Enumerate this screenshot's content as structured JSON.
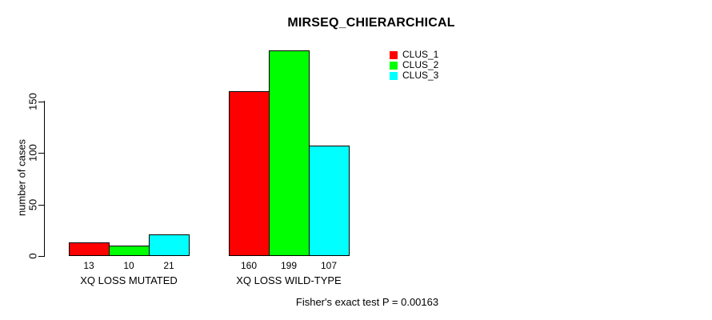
{
  "chart_data": {
    "type": "bar",
    "title": "MIRSEQ_CHIERARCHICAL",
    "ylabel": "number of cases",
    "xlabel": "",
    "categories": [
      "XQ LOSS MUTATED",
      "XQ LOSS WILD-TYPE"
    ],
    "series": [
      {
        "name": "CLUS_1",
        "color": "#ff0000",
        "values": [
          13,
          160
        ]
      },
      {
        "name": "CLUS_2",
        "color": "#00ff00",
        "values": [
          10,
          199
        ]
      },
      {
        "name": "CLUS_3",
        "color": "#00ffff",
        "values": [
          21,
          107
        ]
      }
    ],
    "yticks": [
      0,
      50,
      100,
      150
    ],
    "ylim": [
      0,
      199
    ],
    "bar_value_labels_shown": true,
    "legend_position": "top-right",
    "grid": false
  },
  "footnote": "Fisher's exact test P = 0.00163",
  "colors": {
    "background": "#ffffff",
    "text": "#000000",
    "axis": "#000000",
    "bar_border": "#000000"
  }
}
